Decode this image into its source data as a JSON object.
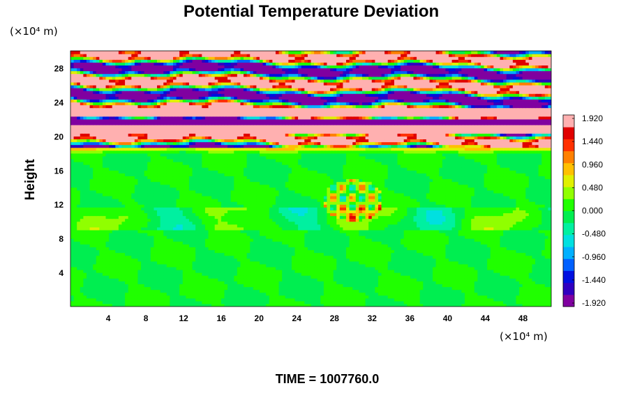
{
  "chart_data": {
    "type": "heatmap",
    "title": "Potential Temperature Deviation",
    "ylabel": "Height",
    "x_unit_label": "(×10⁴ m)",
    "y_unit_label": "(×10⁴ m)",
    "x_ticks": [
      4,
      8,
      12,
      16,
      20,
      24,
      28,
      32,
      36,
      40,
      44,
      48
    ],
    "y_ticks": [
      4,
      8,
      12,
      16,
      20,
      24,
      28
    ],
    "xlim": [
      0,
      51
    ],
    "ylim": [
      0,
      30
    ],
    "colorbar": {
      "ticks": [
        "1.920",
        "1.440",
        "0.960",
        "0.480",
        "0.000",
        "-0.480",
        "-0.960",
        "-1.440",
        "-1.920"
      ],
      "range": [
        -1.92,
        1.92
      ],
      "colors": [
        "#8000a0",
        "#3000c0",
        "#0010e0",
        "#0060ff",
        "#00b0ff",
        "#00e0e0",
        "#00f0a0",
        "#00ee50",
        "#20ff00",
        "#90ff00",
        "#e0f000",
        "#ffc000",
        "#ff8000",
        "#ff3000",
        "#e00000",
        "#ffb0b0"
      ]
    },
    "field_description": "upper layer (about 19–30) banded with strong positive and negative deviations; lower layer near zero with small perturbations around x≈28–32, y≈10–15",
    "time_label": "TIME = 1007760.0"
  }
}
